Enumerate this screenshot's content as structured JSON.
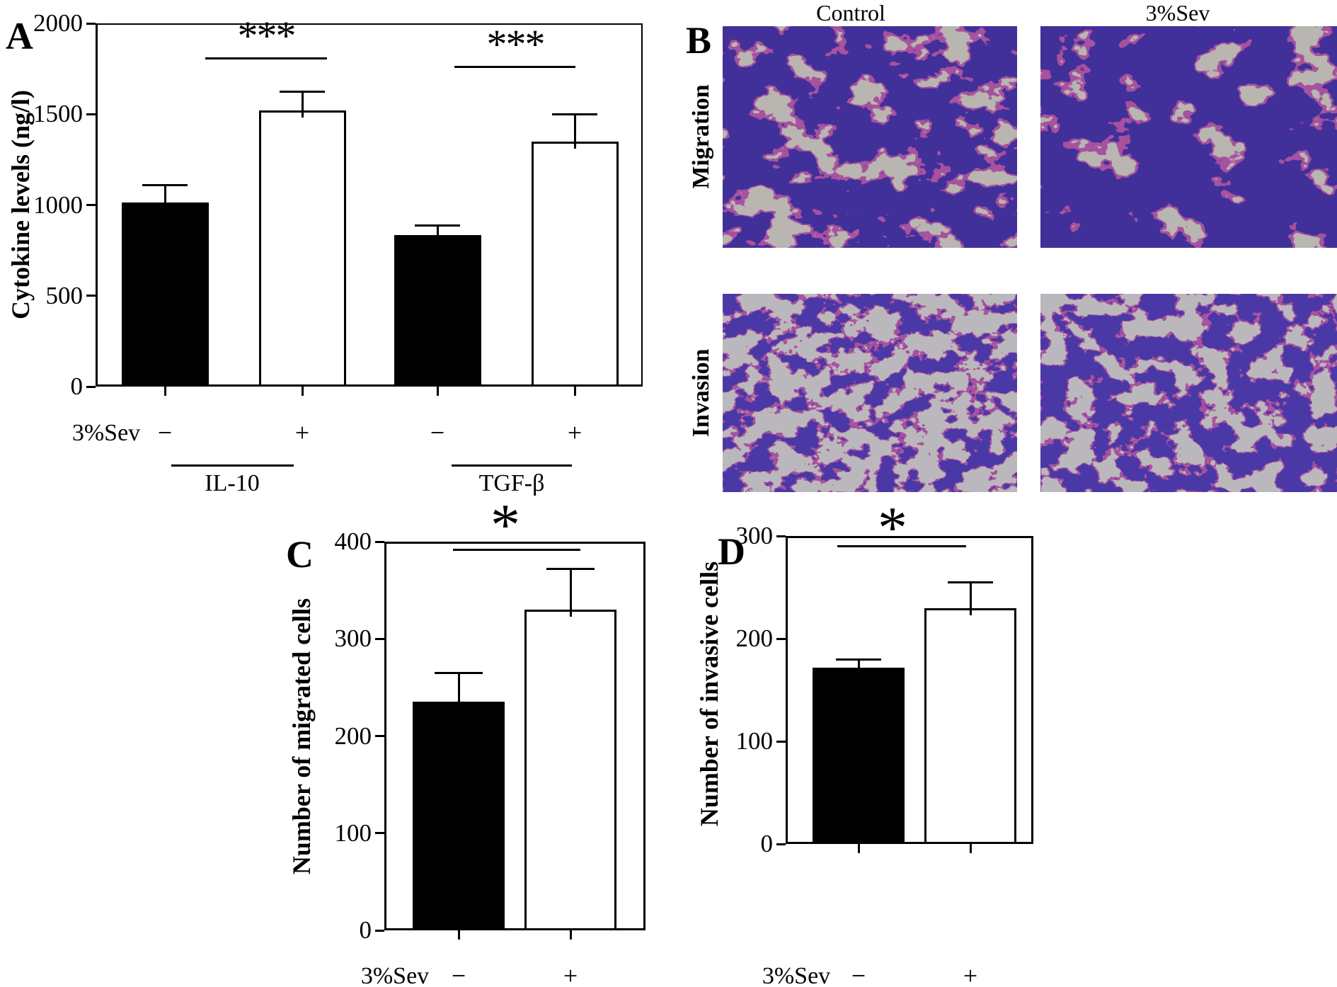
{
  "figure": {
    "background": "#ffffff",
    "ink": "#000000"
  },
  "panelA": {
    "label": "A",
    "y_axis_title": "Cytokine levels (ng/l)",
    "x_row_label": "3%Sev",
    "groups": [
      "IL-10",
      "TGF-β"
    ]
  },
  "panelB": {
    "label": "B",
    "column_headers": [
      "Control",
      "3%Sev"
    ],
    "row_labels": [
      "Migration",
      "Invasion"
    ],
    "stain": {
      "background": "#b9b5b1",
      "background_invasion": "#bab8bc",
      "violet": "#41309a",
      "violet_invasion": "#4a38a6",
      "magenta": "#a7519f"
    }
  },
  "panelC": {
    "label": "C",
    "y_axis_title": "Number of migrated cells",
    "x_row_label": "3%Sev"
  },
  "panelD": {
    "label": "D",
    "y_axis_title": "Number of invasive cells",
    "x_row_label": "3%Sev"
  },
  "chart_data": [
    {
      "id": "A",
      "type": "bar",
      "title": "",
      "xlabel": "3%Sev",
      "ylabel": "Cytokine levels (ng/l)",
      "ylim": [
        0,
        2000
      ],
      "y_ticks": [
        0,
        500,
        1000,
        1500,
        2000
      ],
      "grid": false,
      "categories": [
        "IL-10 3%Sev −",
        "IL-10 3%Sev +",
        "TGF-β 3%Sev −",
        "TGF-β 3%Sev +"
      ],
      "x_signs": [
        "−",
        "+",
        "−",
        "+"
      ],
      "x_group_labels": [
        "IL-10",
        "TGF-β"
      ],
      "values": [
        1015,
        1520,
        835,
        1350
      ],
      "error_plus": [
        95,
        105,
        50,
        150
      ],
      "bar_fills": [
        "#000000",
        "#ffffff",
        "#000000",
        "#ffffff"
      ],
      "significance": [
        {
          "between": [
            0,
            1
          ],
          "label": "***"
        },
        {
          "between": [
            2,
            3
          ],
          "label": "***"
        }
      ]
    },
    {
      "id": "C",
      "type": "bar",
      "title": "",
      "xlabel": "3%Sev",
      "ylabel": "Number of migrated cells",
      "ylim": [
        0,
        400
      ],
      "y_ticks": [
        0,
        100,
        200,
        300,
        400
      ],
      "grid": false,
      "categories": [
        "3%Sev −",
        "3%Sev +"
      ],
      "x_signs": [
        "−",
        "+"
      ],
      "values": [
        235,
        330
      ],
      "error_plus": [
        30,
        42
      ],
      "bar_fills": [
        "#000000",
        "#ffffff"
      ],
      "significance": [
        {
          "between": [
            0,
            1
          ],
          "label": "*"
        }
      ]
    },
    {
      "id": "D",
      "type": "bar",
      "title": "",
      "xlabel": "3%Sev",
      "ylabel": "Number of invasive cells",
      "ylim": [
        0,
        300
      ],
      "y_ticks": [
        0,
        100,
        200,
        300
      ],
      "grid": false,
      "categories": [
        "3%Sev −",
        "3%Sev +"
      ],
      "x_signs": [
        "−",
        "+"
      ],
      "values": [
        172,
        230
      ],
      "error_plus": [
        8,
        25
      ],
      "bar_fills": [
        "#000000",
        "#ffffff"
      ],
      "significance": [
        {
          "between": [
            0,
            1
          ],
          "label": "*"
        }
      ]
    }
  ]
}
